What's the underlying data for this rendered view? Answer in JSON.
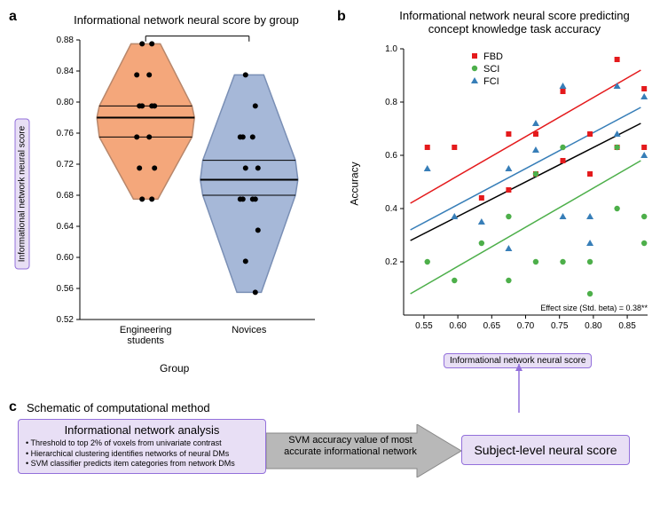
{
  "panel_a": {
    "label": "a",
    "title": "Informational network neural score by group",
    "y_axis_box": "Informational network neural score",
    "x_label": "Group",
    "categories": [
      "Engineering\nstudents",
      "Novices"
    ],
    "significance": "*",
    "ylim": [
      0.52,
      0.88
    ],
    "yticks": [
      0.52,
      0.56,
      0.6,
      0.64,
      0.68,
      0.72,
      0.76,
      0.8,
      0.84,
      0.88
    ],
    "violins": [
      {
        "color": "#f4a77b",
        "border": "#b8876b",
        "median": 0.78,
        "q1": 0.755,
        "q3": 0.795,
        "width_top": 0.35,
        "width_max": 0.95,
        "points": [
          0.875,
          0.875,
          0.835,
          0.835,
          0.795,
          0.795,
          0.795,
          0.795,
          0.755,
          0.755,
          0.715,
          0.715,
          0.675,
          0.675
        ]
      },
      {
        "color": "#a6b8d8",
        "border": "#7a8fb5",
        "median": 0.7,
        "q1": 0.68,
        "q3": 0.725,
        "points": [
          0.835,
          0.795,
          0.755,
          0.755,
          0.755,
          0.715,
          0.715,
          0.675,
          0.675,
          0.675,
          0.675,
          0.635,
          0.595,
          0.555
        ]
      }
    ]
  },
  "panel_b": {
    "label": "b",
    "title": "Informational network neural score predicting\nconcept knowledge task accuracy",
    "y_label": "Accuracy",
    "x_axis_box": "Informational network neural score",
    "legend": [
      {
        "name": "FBD",
        "color": "#e41a1c",
        "marker": "square"
      },
      {
        "name": "SCI",
        "color": "#4daf4a",
        "marker": "circle"
      },
      {
        "name": "FCI",
        "color": "#377eb8",
        "marker": "triangle"
      }
    ],
    "xlim": [
      0.52,
      0.88
    ],
    "xticks": [
      0.55,
      0.6,
      0.65,
      0.7,
      0.75,
      0.8,
      0.85
    ],
    "ylim": [
      0,
      1.0
    ],
    "yticks": [
      0.2,
      0.4,
      0.6,
      0.8,
      1.0
    ],
    "effect_size": "Effect size (Std. beta) = 0.38**",
    "regression_lines": [
      {
        "color": "#e41a1c",
        "y1": 0.42,
        "y2": 0.92
      },
      {
        "color": "#377eb8",
        "y1": 0.32,
        "y2": 0.78
      },
      {
        "color": "#000000",
        "y1": 0.28,
        "y2": 0.72
      },
      {
        "color": "#4daf4a",
        "y1": 0.08,
        "y2": 0.58
      }
    ],
    "points": {
      "FBD": [
        [
          0.555,
          0.63
        ],
        [
          0.595,
          0.63
        ],
        [
          0.635,
          0.44
        ],
        [
          0.675,
          0.47
        ],
        [
          0.675,
          0.68
        ],
        [
          0.715,
          0.53
        ],
        [
          0.715,
          0.68
        ],
        [
          0.755,
          0.58
        ],
        [
          0.755,
          0.84
        ],
        [
          0.795,
          0.53
        ],
        [
          0.795,
          0.68
        ],
        [
          0.835,
          0.63
        ],
        [
          0.835,
          0.96
        ],
        [
          0.875,
          0.63
        ],
        [
          0.875,
          0.85
        ]
      ],
      "SCI": [
        [
          0.555,
          0.2
        ],
        [
          0.595,
          0.13
        ],
        [
          0.635,
          0.27
        ],
        [
          0.675,
          0.37
        ],
        [
          0.675,
          0.13
        ],
        [
          0.715,
          0.2
        ],
        [
          0.715,
          0.53
        ],
        [
          0.755,
          0.2
        ],
        [
          0.755,
          0.63
        ],
        [
          0.795,
          0.08
        ],
        [
          0.795,
          0.2
        ],
        [
          0.835,
          0.4
        ],
        [
          0.835,
          0.63
        ],
        [
          0.875,
          0.27
        ],
        [
          0.875,
          0.37
        ]
      ],
      "FCI": [
        [
          0.555,
          0.55
        ],
        [
          0.595,
          0.37
        ],
        [
          0.635,
          0.35
        ],
        [
          0.675,
          0.25
        ],
        [
          0.675,
          0.55
        ],
        [
          0.715,
          0.62
        ],
        [
          0.715,
          0.72
        ],
        [
          0.755,
          0.37
        ],
        [
          0.755,
          0.86
        ],
        [
          0.795,
          0.27
        ],
        [
          0.795,
          0.37
        ],
        [
          0.835,
          0.68
        ],
        [
          0.835,
          0.86
        ],
        [
          0.875,
          0.6
        ],
        [
          0.875,
          0.82
        ]
      ]
    }
  },
  "panel_c": {
    "label": "c",
    "title": "Schematic of computational method",
    "box1_title": "Informational network analysis",
    "box1_bullets": [
      "Threshold to top 2% of voxels from univariate contrast",
      "Hierarchical clustering identifies networks of neural DMs",
      "SVM classifier predicts item categories from network DMs"
    ],
    "arrow_text": "SVM accuracy value of most\naccurate informational network",
    "box2_text": "Subject-level neural score"
  },
  "colors": {
    "purple_bg": "#e8dff5",
    "purple_border": "#9370db",
    "arrow_fill": "#b8b8b8"
  }
}
